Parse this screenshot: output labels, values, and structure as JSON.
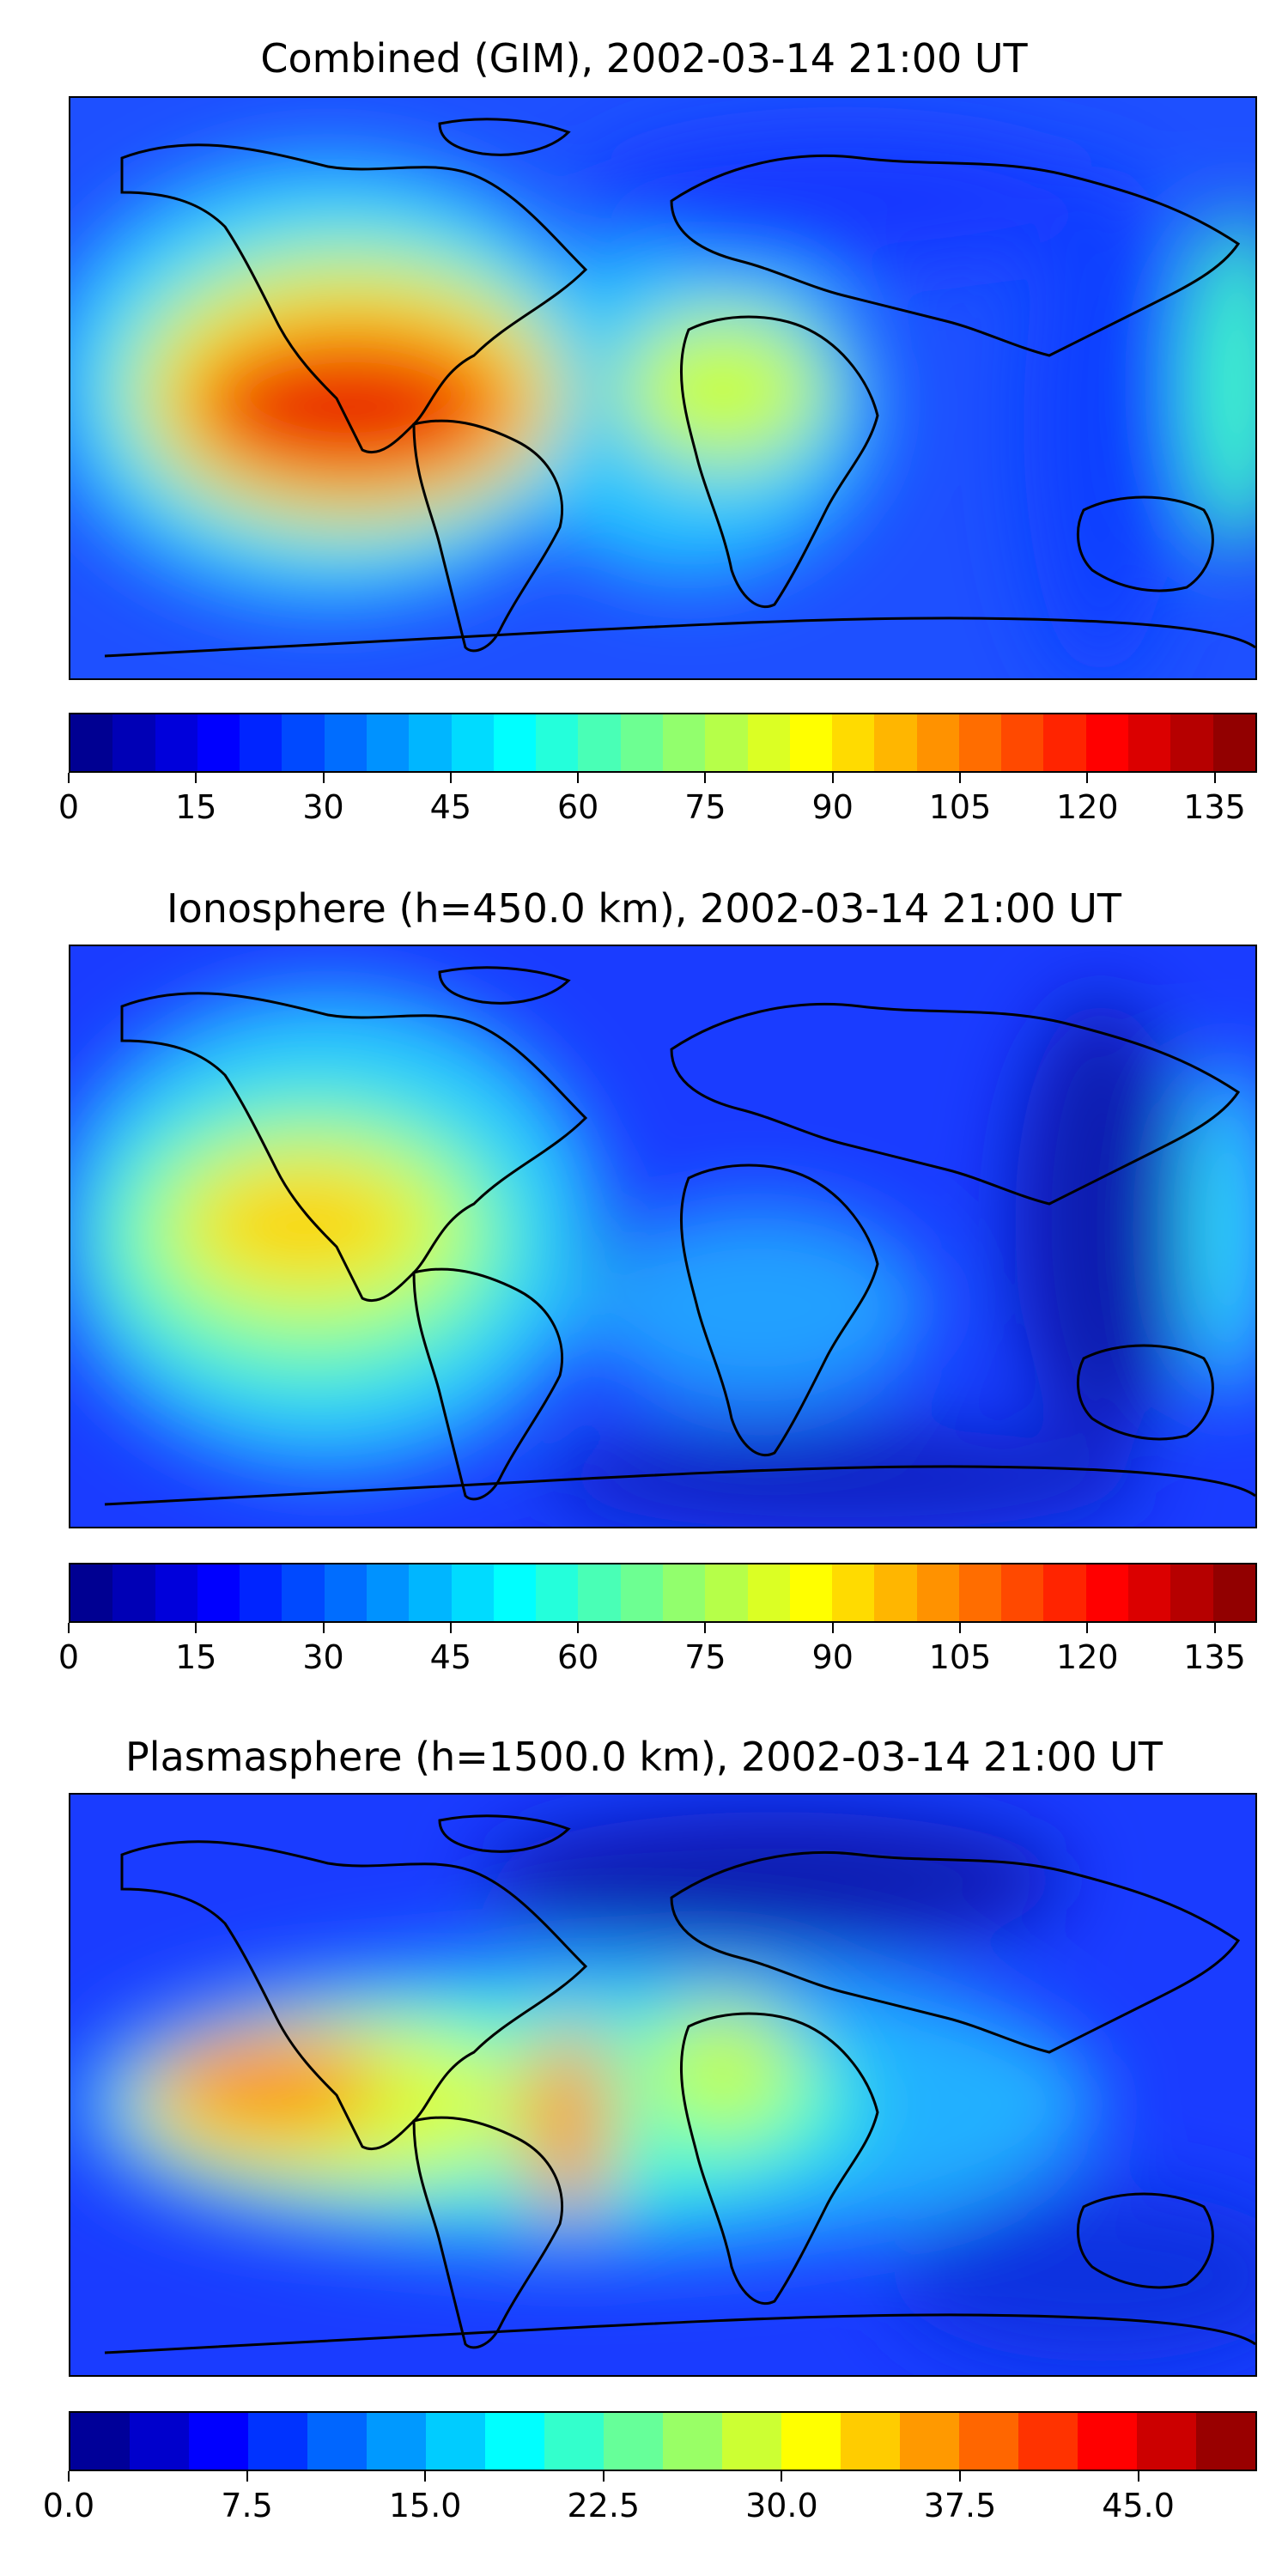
{
  "panels": [
    {
      "title": "Combined (GIM), 2002-03-14 21:00 UT",
      "colorbar": {
        "min": 0,
        "max": 140,
        "levels": 28,
        "ticks": [
          "0",
          "15",
          "30",
          "45",
          "60",
          "75",
          "90",
          "105",
          "120",
          "135"
        ],
        "tick_values": [
          0,
          15,
          30,
          45,
          60,
          75,
          90,
          105,
          120,
          135
        ]
      },
      "field_max": 125
    },
    {
      "title": "Ionosphere  (h=450.0 km), 2002-03-14 21:00 UT",
      "colorbar": {
        "min": 0,
        "max": 140,
        "levels": 28,
        "ticks": [
          "0",
          "15",
          "30",
          "45",
          "60",
          "75",
          "90",
          "105",
          "120",
          "135"
        ],
        "tick_values": [
          0,
          15,
          30,
          45,
          60,
          75,
          90,
          105,
          120,
          135
        ]
      },
      "field_max": 90
    },
    {
      "title": "Plasmasphere (h=1500.0 km), 2002-03-14 21:00 UT",
      "colorbar": {
        "min": 0,
        "max": 50,
        "levels": 20,
        "ticks": [
          "0.0",
          "7.5",
          "15.0",
          "22.5",
          "30.0",
          "37.5",
          "45.0"
        ],
        "tick_values": [
          0,
          7.5,
          15,
          22.5,
          30,
          37.5,
          45
        ]
      },
      "field_max": 40
    }
  ],
  "colormap": "jet",
  "coastline_color": "#000000"
}
